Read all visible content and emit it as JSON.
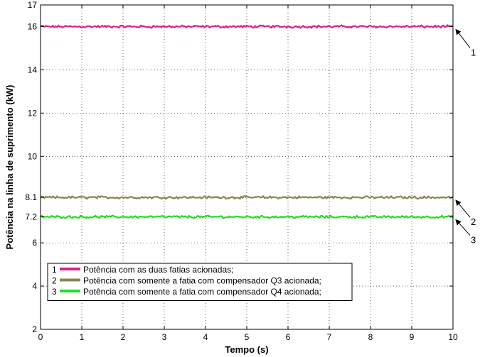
{
  "chart_data": {
    "type": "line",
    "title": "",
    "xlabel": "Tempo (s)",
    "ylabel": "Potência na linha de suprimento (kW)",
    "xlim": [
      0,
      10
    ],
    "ylim": [
      2,
      17
    ],
    "xticks": [
      "0",
      "1",
      "2",
      "3",
      "4",
      "5",
      "6",
      "7",
      "8",
      "9",
      "10"
    ],
    "yticks": [
      "2",
      "4",
      "6",
      "7.2",
      "8.1",
      "10",
      "12",
      "14",
      "16",
      "17"
    ],
    "ytick_values": [
      2,
      4,
      6,
      7.2,
      8.1,
      10,
      12,
      14,
      16,
      17
    ],
    "grid": true,
    "grid_style": "dotted",
    "legend_position": "bottom-left",
    "series": [
      {
        "name": "Potência com as duas fatias acionadas;",
        "legend_index": "1",
        "color": "#e0208a",
        "x": [
          0,
          10
        ],
        "values": [
          16.0,
          16.0
        ]
      },
      {
        "name": "Potência com somente a fatia com compensador Q3 acionada;",
        "legend_index": "2",
        "color": "#8b8550",
        "x": [
          0,
          10
        ],
        "values": [
          8.1,
          8.1
        ]
      },
      {
        "name": "Potência com somente a fatia com compensador Q4 acionada;",
        "legend_index": "3",
        "color": "#22e022",
        "x": [
          0,
          10
        ],
        "values": [
          7.2,
          7.2
        ]
      }
    ],
    "annotations": [
      {
        "text": "1",
        "target_series": 0
      },
      {
        "text": "2",
        "target_series": 1
      },
      {
        "text": "3",
        "target_series": 2
      }
    ]
  }
}
